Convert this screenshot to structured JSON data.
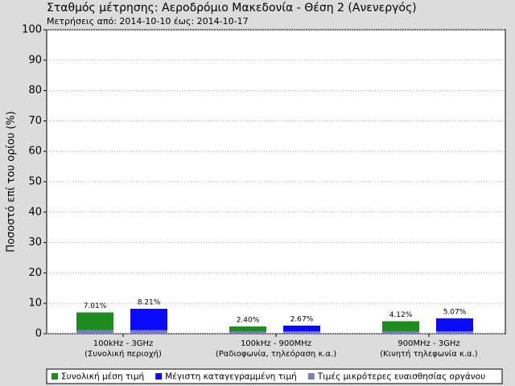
{
  "chart_data": {
    "type": "bar",
    "title": "Σταθμός μέτρησης: Αεροδρόμιο Μακεδονία - Θέση 2 (Ανενεργός)",
    "subtitle": "Μετρήσεις από: 2014-10-10 έως: 2014-10-17",
    "y_label": "Ποσοστό επί του ορίου (%)",
    "categories": [
      [
        "100kHz - 3GHz",
        "(Συνολική περιοχή)"
      ],
      [
        "100kHz - 900MHz",
        "(Ραδιοφωνία, τηλεόραση κ.α.)"
      ],
      [
        "900MHz - 3GHz",
        "(Κινητή τηλεφωνία κ.α.)"
      ]
    ],
    "series": [
      {
        "name": "Συνολική μέση τιμή",
        "color": "#1f8c1f",
        "values": [
          7.01,
          2.4,
          4.12
        ],
        "value_labels": [
          "7.01%",
          "2.40%",
          "4.12%"
        ]
      },
      {
        "name": "Μέγιστη καταγεγραμμένη τιμή",
        "color": "#0a0aff",
        "values": [
          8.21,
          2.67,
          5.07
        ],
        "value_labels": [
          "8.21%",
          "2.67%",
          "5.07%"
        ]
      },
      {
        "name": "Τιμές μικρότερες ευαισθησίας οργάνου",
        "color": "#7b7bc0",
        "values": [
          1.2,
          0.8,
          0.8
        ]
      }
    ],
    "ylim": [
      0,
      100
    ],
    "yticks": [
      0,
      10,
      20,
      30,
      40,
      50,
      60,
      70,
      80,
      90,
      100
    ],
    "grid": true
  }
}
